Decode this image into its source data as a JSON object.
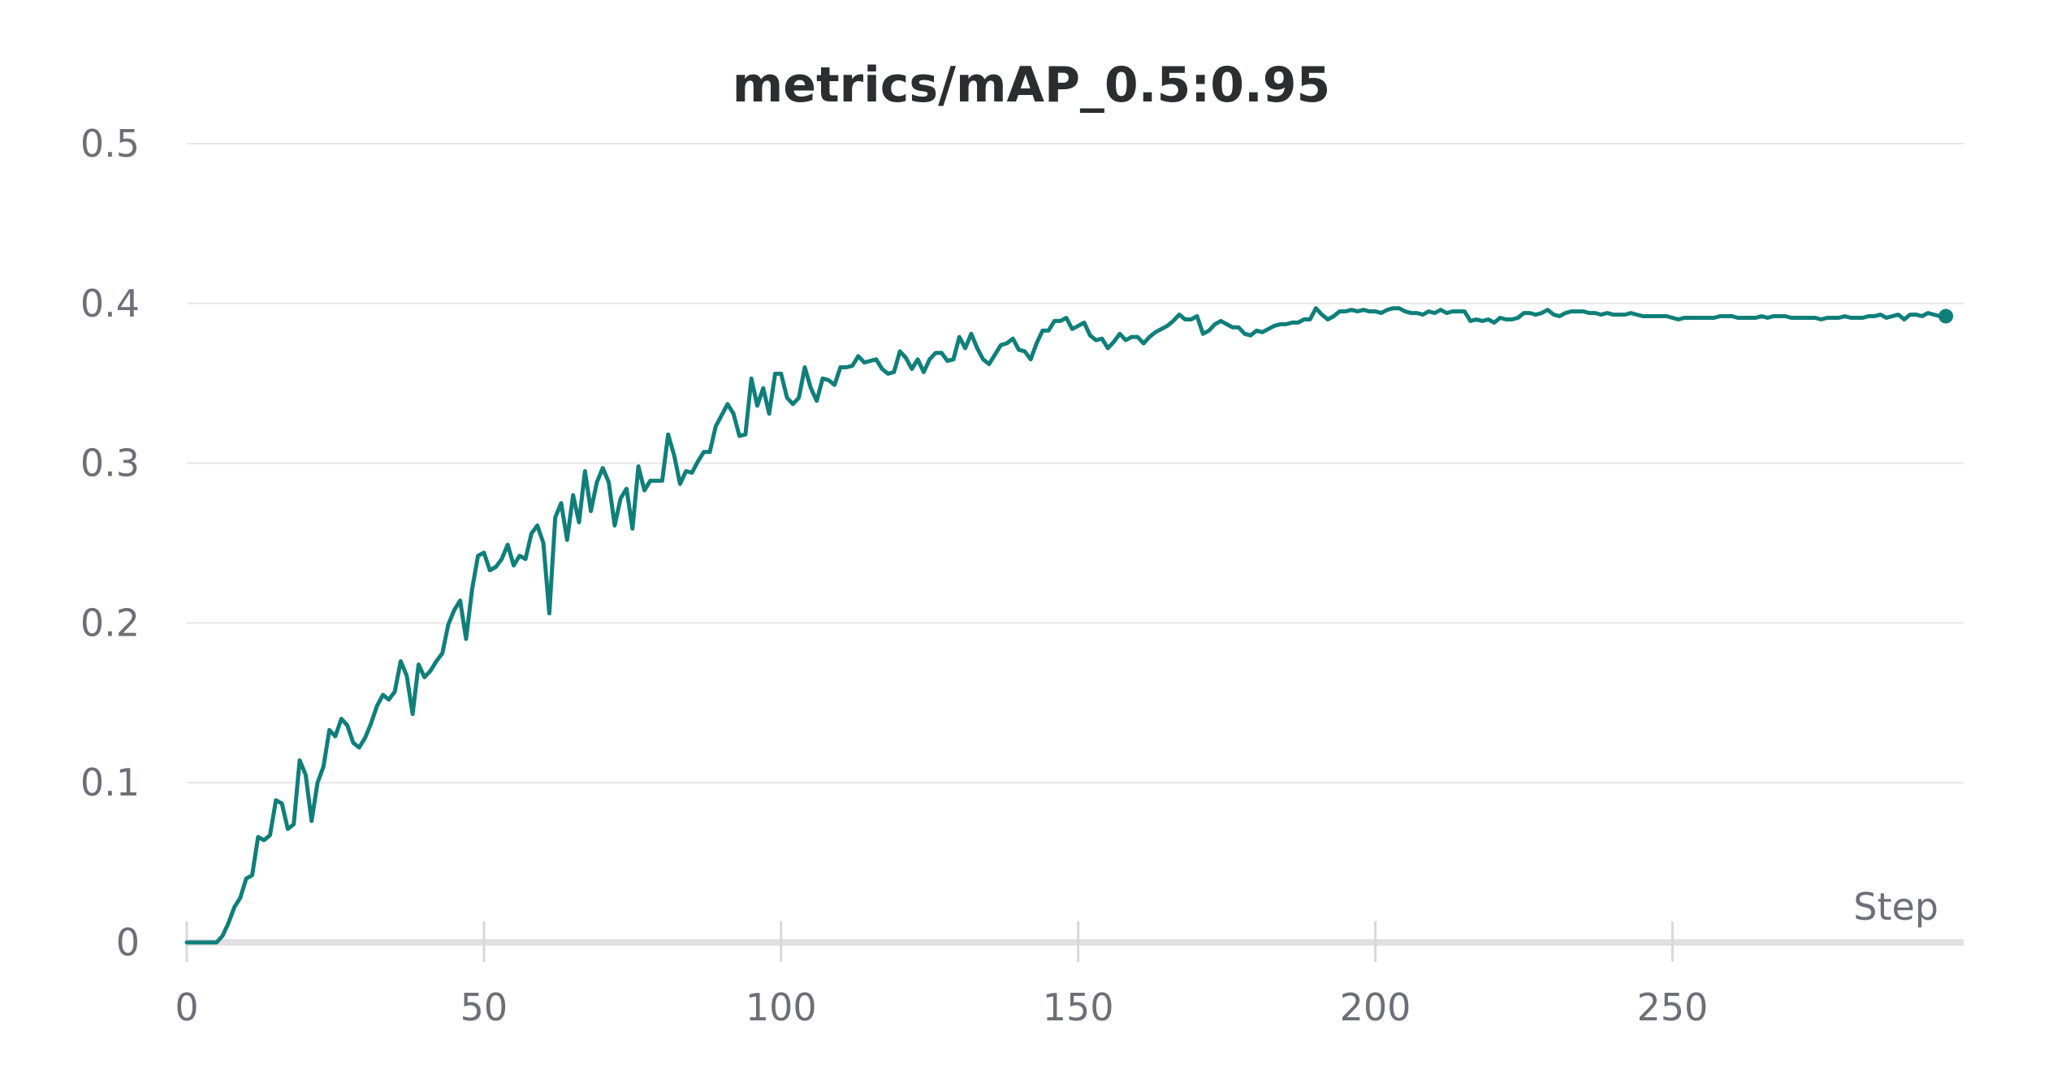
{
  "chart_data": {
    "type": "line",
    "title": "metrics/mAP_0.5:0.95",
    "xlabel": "Step",
    "ylabel": "",
    "xlim": [
      0,
      299
    ],
    "ylim": [
      0,
      0.5
    ],
    "x_ticks": [
      0,
      50,
      100,
      150,
      200,
      250
    ],
    "x_tick_labels": [
      "0",
      "50",
      "100",
      "150",
      "200",
      "250"
    ],
    "y_ticks": [
      0,
      0.1,
      0.2,
      0.3,
      0.4,
      0.5
    ],
    "y_tick_labels": [
      "0",
      "0.1",
      "0.2",
      "0.3",
      "0.4",
      "0.5"
    ],
    "grid": true,
    "line_color": "#0f7f7a",
    "series": [
      {
        "values": [
          0,
          0,
          0,
          0,
          0,
          0,
          0.004,
          0.012,
          0.022,
          0.028,
          0.04,
          0.042,
          0.066,
          0.064,
          0.067,
          0.089,
          0.087,
          0.071,
          0.074,
          0.114,
          0.105,
          0.076,
          0.1,
          0.11,
          0.133,
          0.129,
          0.14,
          0.136,
          0.125,
          0.122,
          0.128,
          0.137,
          0.148,
          0.155,
          0.152,
          0.157,
          0.176,
          0.167,
          0.143,
          0.174,
          0.166,
          0.17,
          0.176,
          0.181,
          0.199,
          0.208,
          0.214,
          0.19,
          0.221,
          0.242,
          0.244,
          0.233,
          0.235,
          0.24,
          0.249,
          0.236,
          0.242,
          0.24,
          0.256,
          0.261,
          0.25,
          0.206,
          0.266,
          0.275,
          0.252,
          0.28,
          0.263,
          0.295,
          0.27,
          0.288,
          0.297,
          0.288,
          0.261,
          0.278,
          0.284,
          0.259,
          0.298,
          0.283,
          0.289,
          0.289,
          0.289,
          0.318,
          0.305,
          0.287,
          0.295,
          0.294,
          0.301,
          0.307,
          0.307,
          0.323,
          0.33,
          0.337,
          0.331,
          0.317,
          0.318,
          0.353,
          0.336,
          0.347,
          0.331,
          0.356,
          0.356,
          0.341,
          0.337,
          0.341,
          0.36,
          0.347,
          0.339,
          0.353,
          0.352,
          0.349,
          0.36,
          0.36,
          0.361,
          0.367,
          0.363,
          0.364,
          0.365,
          0.359,
          0.356,
          0.357,
          0.37,
          0.366,
          0.359,
          0.365,
          0.357,
          0.365,
          0.369,
          0.369,
          0.364,
          0.365,
          0.379,
          0.372,
          0.381,
          0.372,
          0.365,
          0.362,
          0.368,
          0.374,
          0.375,
          0.378,
          0.371,
          0.37,
          0.365,
          0.375,
          0.383,
          0.383,
          0.389,
          0.389,
          0.391,
          0.384,
          0.386,
          0.388,
          0.38,
          0.377,
          0.378,
          0.372,
          0.376,
          0.381,
          0.377,
          0.379,
          0.379,
          0.375,
          0.379,
          0.382,
          0.384,
          0.386,
          0.389,
          0.393,
          0.39,
          0.39,
          0.392,
          0.381,
          0.383,
          0.387,
          0.389,
          0.387,
          0.385,
          0.385,
          0.381,
          0.38,
          0.383,
          0.382,
          0.384,
          0.386,
          0.387,
          0.387,
          0.388,
          0.388,
          0.39,
          0.39,
          0.397,
          0.393,
          0.39,
          0.392,
          0.395,
          0.395,
          0.396,
          0.395,
          0.396,
          0.395,
          0.395,
          0.394,
          0.396,
          0.397,
          0.397,
          0.395,
          0.394,
          0.394,
          0.393,
          0.395,
          0.394,
          0.396,
          0.394,
          0.395,
          0.395,
          0.395,
          0.389,
          0.39,
          0.389,
          0.39,
          0.388,
          0.391,
          0.39,
          0.39,
          0.391,
          0.394,
          0.394,
          0.393,
          0.394,
          0.396,
          0.393,
          0.392,
          0.394,
          0.395,
          0.395,
          0.395,
          0.394,
          0.394,
          0.393,
          0.394,
          0.393,
          0.393,
          0.393,
          0.394,
          0.393,
          0.392,
          0.392,
          0.392,
          0.392,
          0.392,
          0.391,
          0.39,
          0.391,
          0.391,
          0.391,
          0.391,
          0.391,
          0.391,
          0.392,
          0.392,
          0.392,
          0.391,
          0.391,
          0.391,
          0.391,
          0.392,
          0.391,
          0.392,
          0.392,
          0.392,
          0.391,
          0.391,
          0.391,
          0.391,
          0.391,
          0.39,
          0.391,
          0.391,
          0.391,
          0.392,
          0.391,
          0.391,
          0.391,
          0.392,
          0.392,
          0.393,
          0.391,
          0.392,
          0.393,
          0.39,
          0.393,
          0.393,
          0.392,
          0.394,
          0.393,
          0.392,
          0.392
        ]
      }
    ],
    "last_point_marker": true
  }
}
